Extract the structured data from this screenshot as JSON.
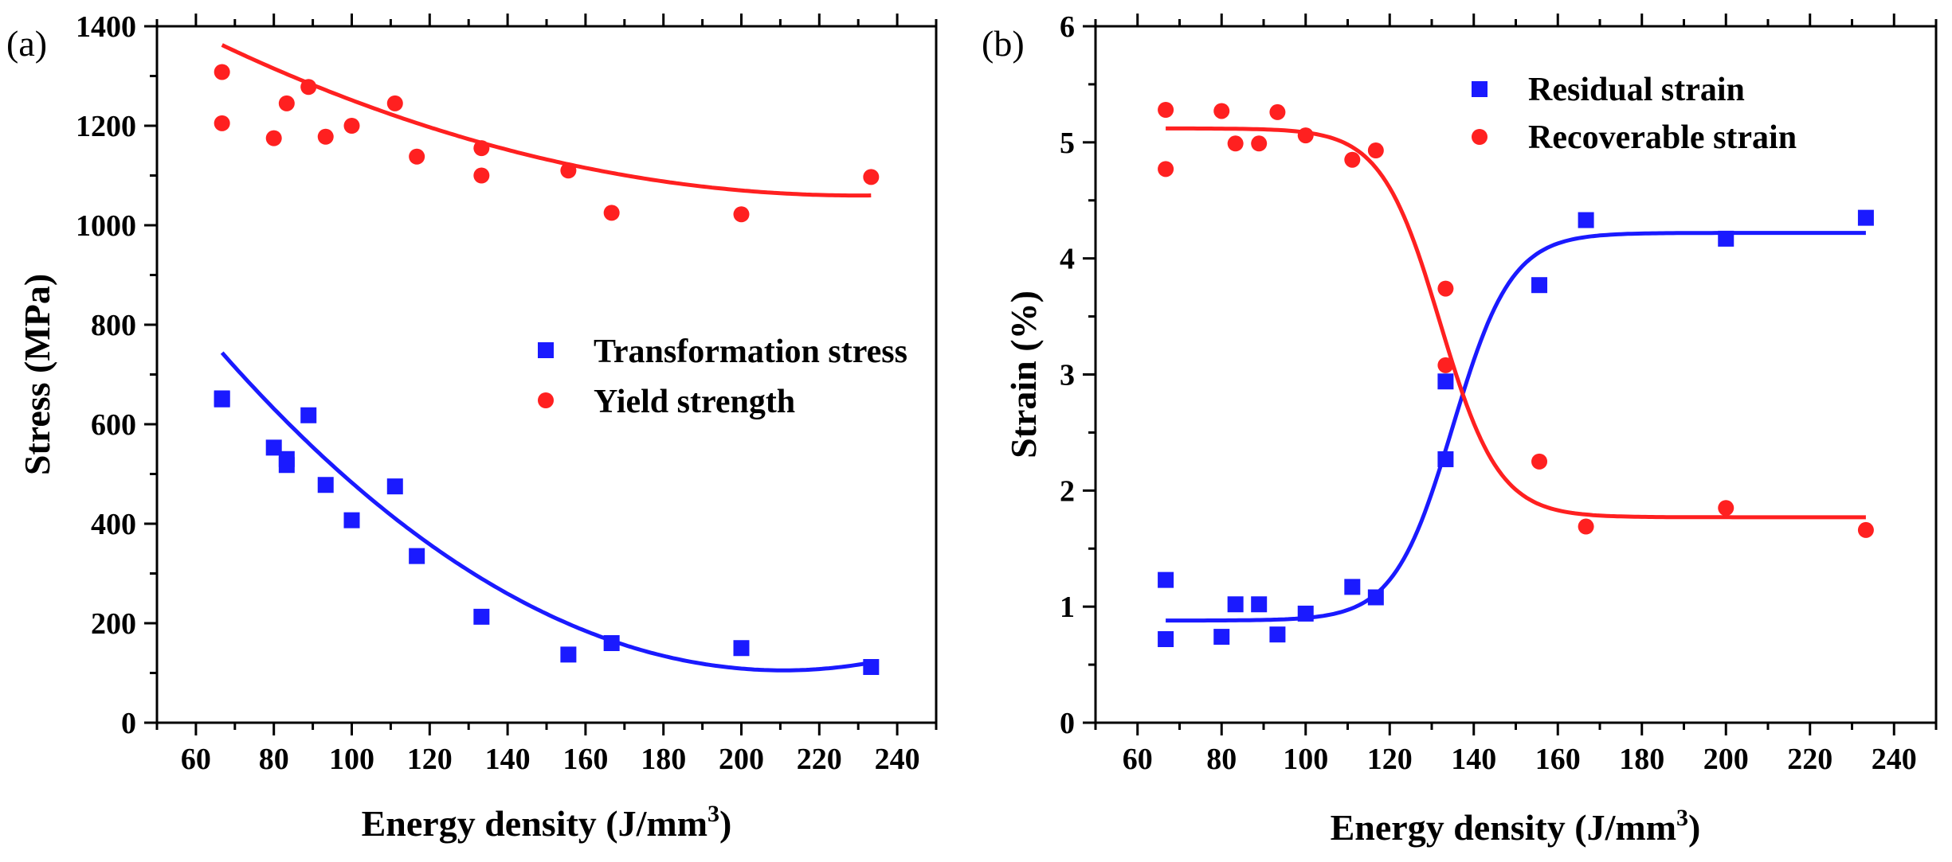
{
  "chart_data": [
    {
      "type": "scatter",
      "panel_label": "(a)",
      "xlabel": "Energy density (J/mm",
      "xlabel_sup": "3",
      "xlabel_close": ")",
      "ylabel": "Stress (MPa)",
      "xlim": [
        50,
        250
      ],
      "ylim": [
        0,
        1400
      ],
      "xticks": [
        60,
        80,
        100,
        120,
        140,
        160,
        180,
        200,
        220,
        240
      ],
      "yticks": [
        0,
        200,
        400,
        600,
        800,
        1000,
        1200,
        1400
      ],
      "legend_position": "center-right",
      "series": [
        {
          "name": "Transformation stress",
          "marker": "square",
          "color": "#1a1aff",
          "x": [
            66.7,
            66.7,
            80,
            83.3,
            83.3,
            88.9,
            93.3,
            100,
            111.1,
            116.7,
            133.3,
            155.6,
            166.7,
            200,
            233.3
          ],
          "y": [
            652,
            650,
            553,
            530,
            518,
            618,
            478,
            407,
            475,
            335,
            213,
            137,
            160,
            150,
            112
          ],
          "fit": {
            "kind": "poly2",
            "coef": [
              0.03077,
              -12.97,
              1472
            ]
          }
        },
        {
          "name": "Yield strength",
          "marker": "circle",
          "color": "#ff2020",
          "x": [
            66.7,
            66.7,
            80,
            83.3,
            88.9,
            93.3,
            100,
            111.1,
            116.7,
            133.3,
            133.3,
            155.6,
            166.7,
            200,
            233.3
          ],
          "y": [
            1308,
            1205,
            1175,
            1245,
            1278,
            1178,
            1200,
            1245,
            1138,
            1155,
            1100,
            1110,
            1025,
            1022,
            1097
          ],
          "fit": {
            "kind": "poly2",
            "coef": [
              0.01135,
              -5.22,
              1660
            ]
          }
        }
      ]
    },
    {
      "type": "scatter",
      "panel_label": "(b)",
      "xlabel": "Energy density (J/mm",
      "xlabel_sup": "3",
      "xlabel_close": ")",
      "ylabel": "Strain (%)",
      "xlim": [
        50,
        250
      ],
      "ylim": [
        0,
        6
      ],
      "xticks": [
        60,
        80,
        100,
        120,
        140,
        160,
        180,
        200,
        220,
        240
      ],
      "yticks": [
        0,
        1,
        2,
        3,
        4,
        5,
        6
      ],
      "legend_position": "top-right",
      "series": [
        {
          "name": "Residual strain",
          "marker": "square",
          "color": "#1a1aff",
          "x": [
            66.7,
            66.7,
            80,
            83.3,
            88.9,
            93.3,
            100,
            111.1,
            116.7,
            133.3,
            133.3,
            155.6,
            166.7,
            200,
            233.3
          ],
          "y": [
            1.23,
            0.72,
            0.74,
            1.02,
            1.02,
            0.76,
            0.94,
            1.17,
            1.08,
            2.94,
            2.27,
            3.77,
            4.33,
            4.17,
            4.35
          ],
          "fit": {
            "kind": "sigmoid",
            "a": 0.88,
            "b": 4.22,
            "x0": 135,
            "k": 7
          }
        },
        {
          "name": "Recoverable strain",
          "marker": "circle",
          "color": "#ff2020",
          "x": [
            66.7,
            66.7,
            80,
            83.3,
            88.9,
            93.3,
            100,
            111.1,
            116.7,
            133.3,
            133.3,
            155.6,
            166.7,
            200,
            233.3
          ],
          "y": [
            5.28,
            4.77,
            5.27,
            4.99,
            4.99,
            5.26,
            5.06,
            4.85,
            4.93,
            3.74,
            3.08,
            2.25,
            1.69,
            1.85,
            1.66
          ],
          "fit": {
            "kind": "sigmoid",
            "a": 5.12,
            "b": 1.77,
            "x0": 132,
            "k": 7
          }
        }
      ]
    }
  ]
}
